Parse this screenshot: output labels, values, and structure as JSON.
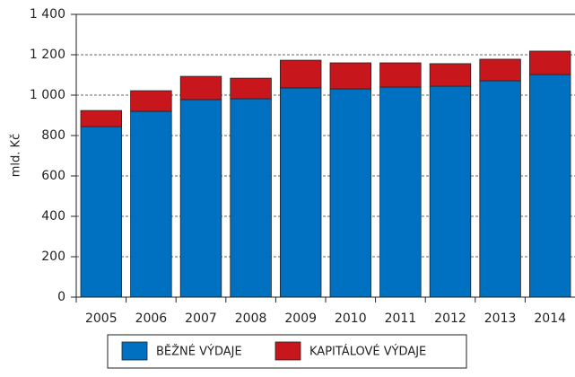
{
  "chart_data": {
    "type": "stacked-bar",
    "ylabel": "mld. Kč",
    "categories": [
      "2005",
      "2006",
      "2007",
      "2008",
      "2009",
      "2010",
      "2011",
      "2012",
      "2013",
      "2014"
    ],
    "series": [
      {
        "name": "BĚŽNÉ VÝDAJE",
        "color": "#0070c0",
        "values": [
          844,
          920,
          978,
          982,
          1036,
          1031,
          1040,
          1044,
          1071,
          1102
        ]
      },
      {
        "name": "KAPITÁLOVÉ VÝDAJE",
        "color": "#c8161d",
        "values": [
          80,
          102,
          115,
          102,
          137,
          129,
          120,
          112,
          107,
          116
        ]
      }
    ],
    "ylim": [
      0,
      1400
    ],
    "yticks": [
      0,
      200,
      400,
      600,
      800,
      {
        "value": 1000,
        "label": "1 000"
      },
      {
        "value": 1200,
        "label": "1 200"
      },
      {
        "value": 1400,
        "label": "1 400"
      }
    ],
    "grid": true
  }
}
